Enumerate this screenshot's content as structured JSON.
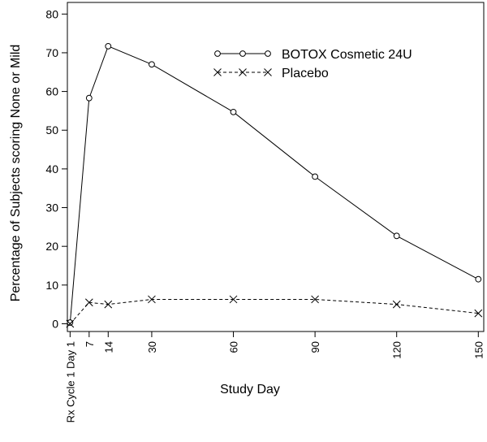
{
  "chart_data": {
    "type": "line",
    "title": "",
    "xlabel": "Study Day",
    "ylabel": "Percentage of Subjects scoring None or Mild",
    "xlim": [
      -1,
      152
    ],
    "ylim": [
      -2,
      83
    ],
    "x_ticks": [
      {
        "x": 0,
        "label": "Rx Cycle 1 Day 1"
      },
      {
        "x": 7,
        "label": "7"
      },
      {
        "x": 14,
        "label": "14"
      },
      {
        "x": 30,
        "label": "30"
      },
      {
        "x": 60,
        "label": "60"
      },
      {
        "x": 90,
        "label": "90"
      },
      {
        "x": 120,
        "label": "120"
      },
      {
        "x": 150,
        "label": "150"
      }
    ],
    "y_ticks": [
      0,
      10,
      20,
      30,
      40,
      50,
      60,
      70,
      80
    ],
    "grid": false,
    "legend_position": "top-right",
    "series": [
      {
        "name": "BOTOX Cosmetic 24U",
        "marker": "circle",
        "line_style": "solid",
        "color": "#000000",
        "points": [
          {
            "x": 0,
            "y": 0.3
          },
          {
            "x": 7,
            "y": 58.3
          },
          {
            "x": 14,
            "y": 71.7
          },
          {
            "x": 30,
            "y": 67
          },
          {
            "x": 60,
            "y": 54.7
          },
          {
            "x": 90,
            "y": 38
          },
          {
            "x": 120,
            "y": 22.7
          },
          {
            "x": 150,
            "y": 11.5
          }
        ]
      },
      {
        "name": "Placebo",
        "marker": "x",
        "line_style": "dashed",
        "color": "#000000",
        "points": [
          {
            "x": 0,
            "y": 0
          },
          {
            "x": 7,
            "y": 5.5
          },
          {
            "x": 14,
            "y": 5
          },
          {
            "x": 30,
            "y": 6.3
          },
          {
            "x": 60,
            "y": 6.3
          },
          {
            "x": 90,
            "y": 6.3
          },
          {
            "x": 120,
            "y": 5
          },
          {
            "x": 150,
            "y": 2.7
          }
        ]
      }
    ]
  }
}
